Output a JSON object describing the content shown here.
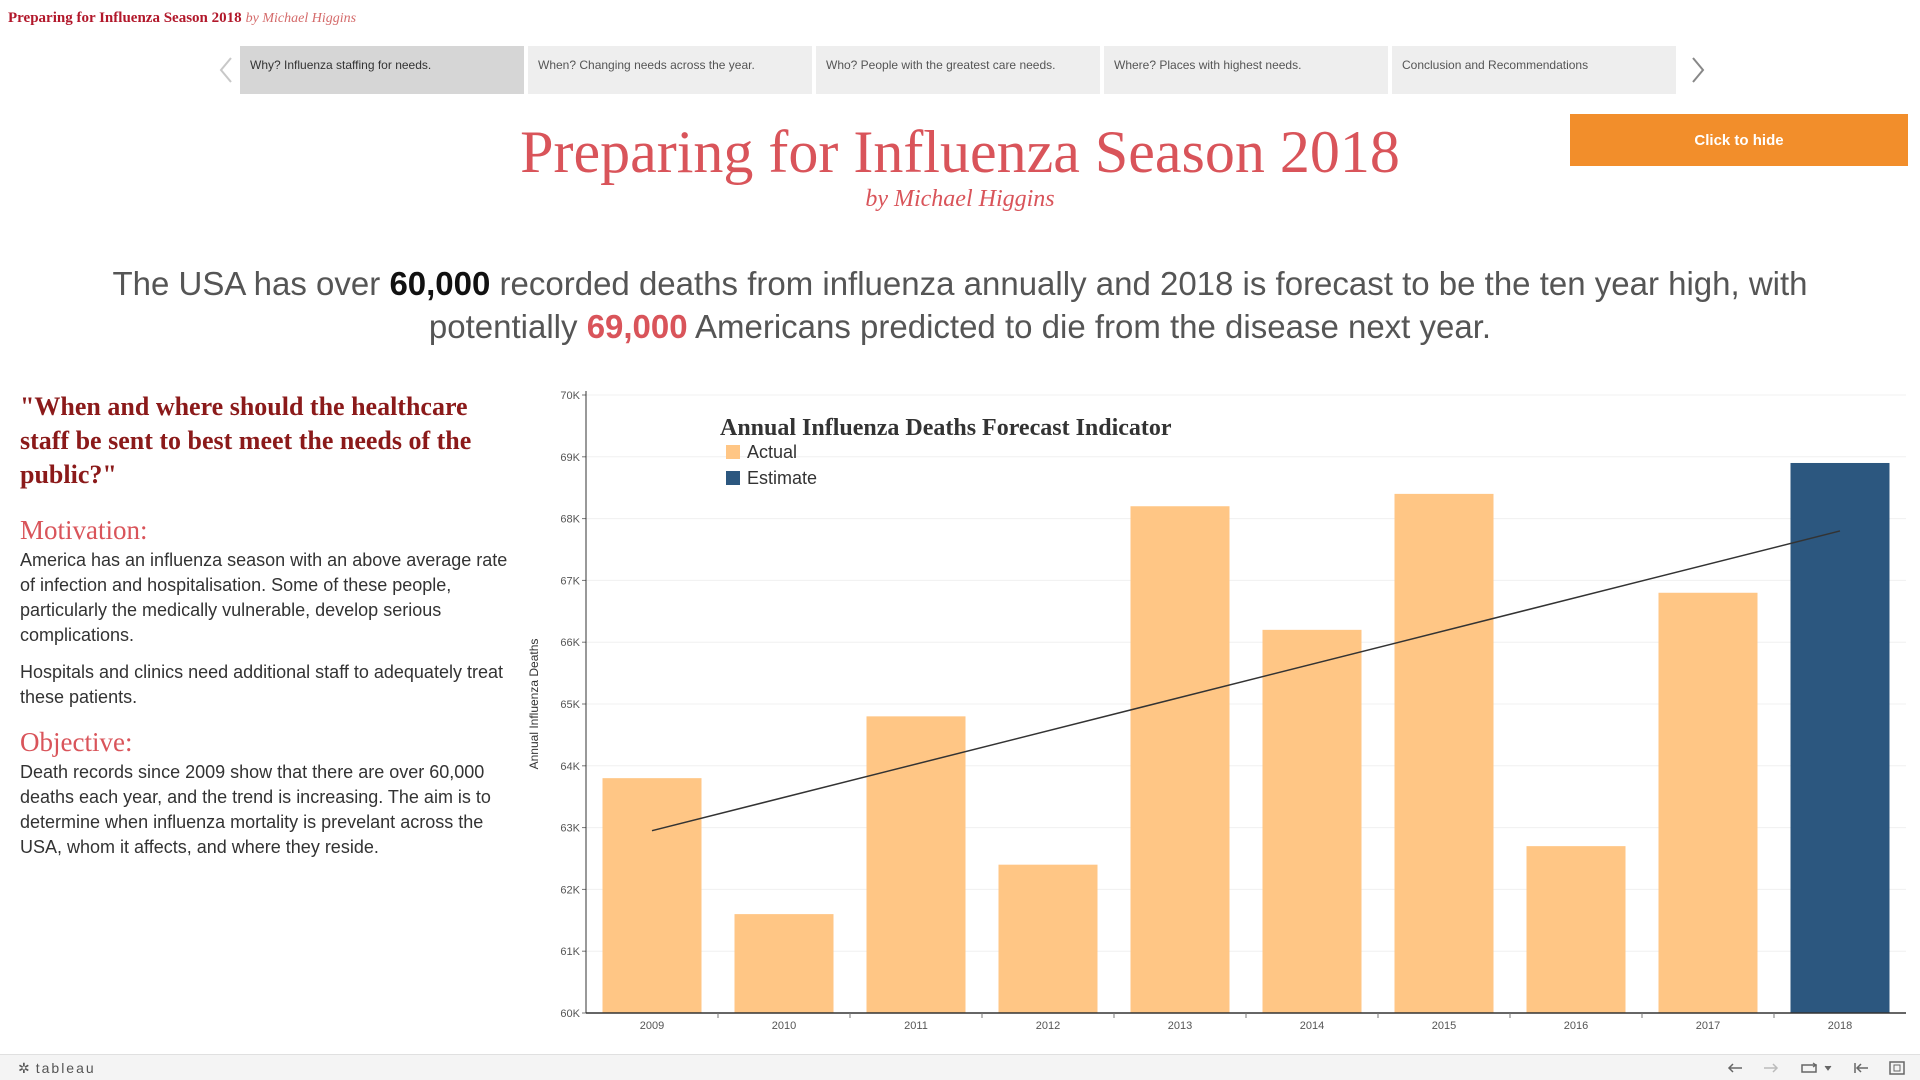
{
  "doc": {
    "title": "Preparing for Influenza Season 2018",
    "byline": "by Michael Higgins"
  },
  "story_nav": {
    "points": [
      {
        "label": "Why? Influenza staffing for needs.",
        "active": true
      },
      {
        "label": "When? Changing needs across the year.",
        "active": false
      },
      {
        "label": "Who? People with the greatest care needs.",
        "active": false
      },
      {
        "label": "Where? Places with highest needs.",
        "active": false
      },
      {
        "label": "Conclusion and Recommendations",
        "active": false
      }
    ]
  },
  "hide_button": {
    "label": "Click to hide"
  },
  "header": {
    "title": "Preparing for Influenza Season 2018",
    "byline": "by Michael Higgins"
  },
  "headline": {
    "part1": "The USA has over ",
    "num1": "60,000",
    "part2": " recorded deaths from influenza annually and 2018 is forecast to be the ten year high, with potentially ",
    "num2": "69,000",
    "part3": " Americans predicted to die from the disease next year."
  },
  "left_panel": {
    "quote": "\"When and where should the healthcare staff be sent to best meet the needs of the public?\"",
    "motivation_heading": "Motivation:",
    "motivation_p1": "America has an influenza season with an above average rate of infection and hospitalisation. Some of these people, particularly the medically vulnerable, develop serious complications.",
    "motivation_p2": "Hospitals and clinics need additional staff to adequately treat these patients.",
    "objective_heading": "Objective:",
    "objective_p": "Death records since 2009 show that there are over 60,000 deaths each year, and the trend is increasing. The aim is to determine when influenza mortality is prevelant across the USA, whom it affects, and where they reside."
  },
  "chart_data": {
    "type": "bar",
    "title": "Annual Influenza Deaths Forecast Indicator",
    "ylabel": "Annual Influenza Deaths",
    "xlabel": "",
    "ylim": [
      60000,
      70000
    ],
    "yticks": [
      60000,
      61000,
      62000,
      63000,
      64000,
      65000,
      66000,
      67000,
      68000,
      69000,
      70000
    ],
    "ytick_labels": [
      "60K",
      "61K",
      "62K",
      "63K",
      "64K",
      "65K",
      "66K",
      "67K",
      "68K",
      "69K",
      "70K"
    ],
    "categories": [
      "2009",
      "2010",
      "2011",
      "2012",
      "2013",
      "2014",
      "2015",
      "2016",
      "2017",
      "2018"
    ],
    "values": [
      63800,
      61600,
      64800,
      62400,
      68200,
      66200,
      68400,
      62700,
      66800,
      68900
    ],
    "kind": [
      "Actual",
      "Actual",
      "Actual",
      "Actual",
      "Actual",
      "Actual",
      "Actual",
      "Actual",
      "Actual",
      "Estimate"
    ],
    "legend": [
      {
        "name": "Actual",
        "color": "#ffc685"
      },
      {
        "name": "Estimate",
        "color": "#2c577f"
      }
    ],
    "legend_position": "top-left",
    "trend_line": {
      "x": [
        "2009",
        "2018"
      ],
      "y": [
        62950,
        67800
      ]
    },
    "grid": true
  },
  "footer": {
    "brand": "tableau"
  },
  "colors": {
    "accent": "#f28e2b",
    "title": "#d9545a",
    "quote": "#8b1a1a",
    "actual": "#ffc685",
    "estimate": "#2c577f"
  }
}
